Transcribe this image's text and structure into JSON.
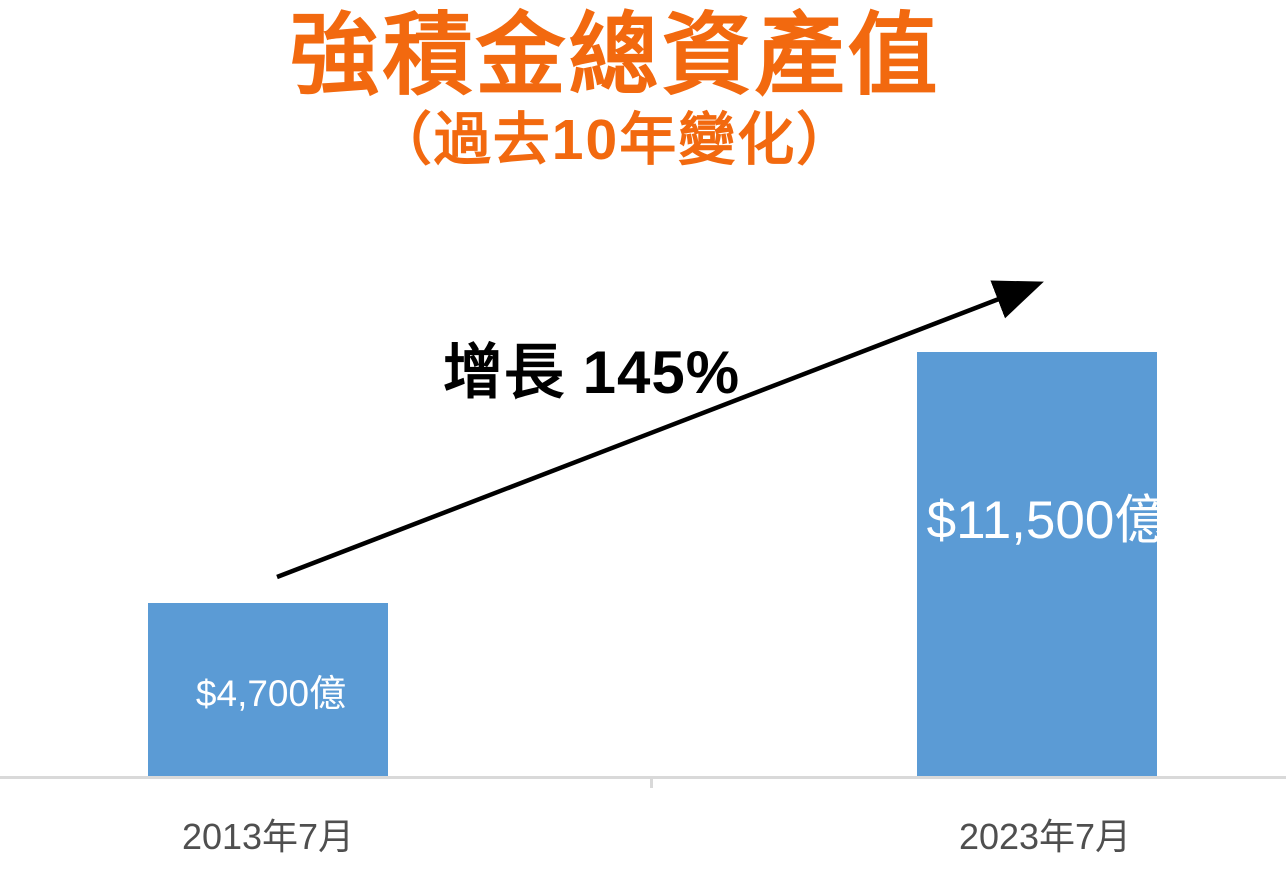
{
  "page": {
    "background": "#FFFFFF"
  },
  "chart_data": {
    "type": "bar",
    "title": "強積金總資產值",
    "subtitle": "（過去10年變化）",
    "categories": [
      "2013年7月",
      "2023年7月"
    ],
    "values": [
      4700,
      11500
    ],
    "value_labels": [
      "$4,700億",
      "$11,500億"
    ],
    "annotation": "增長 145%",
    "ylim": [
      0,
      11500
    ],
    "xlabel": "",
    "ylabel": "",
    "y_axis_visible": false,
    "gridlines": false,
    "legend": "none",
    "colors": {
      "bar": "#5B9BD5",
      "title": "#F2690F",
      "annotation": "#000000",
      "arrow": "#000000",
      "axis_line": "#D9D9D9",
      "category_label": "#4F4F4F",
      "bar_label_text": "#FFFFFF"
    }
  }
}
